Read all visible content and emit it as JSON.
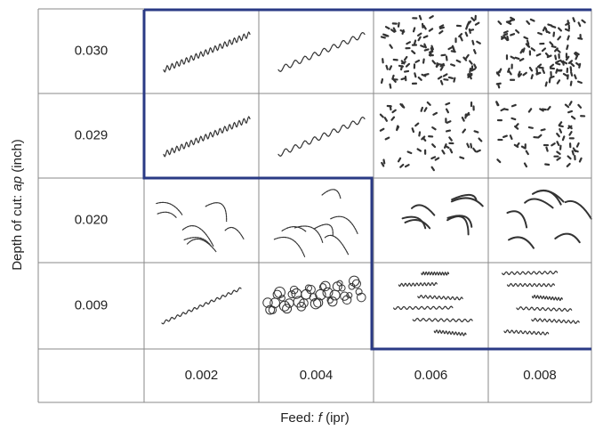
{
  "y_axis_label": {
    "parts": [
      "Depth of cut: ",
      "ap",
      " (inch)"
    ]
  },
  "x_axis_label": {
    "parts": [
      "Feed: ",
      "f",
      " (ipr)"
    ]
  },
  "table": {
    "rows": [
      "0.030",
      "0.029",
      "0.020",
      "0.009"
    ],
    "columns": [
      "0.002",
      "0.004",
      "0.006",
      "0.008"
    ]
  }
}
